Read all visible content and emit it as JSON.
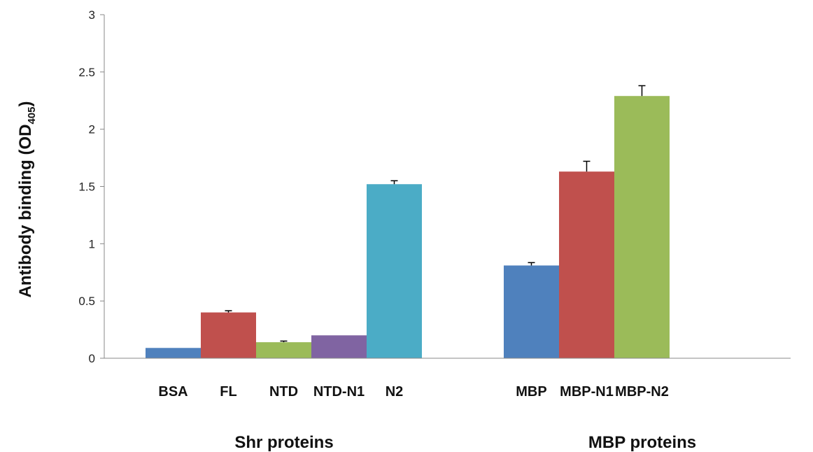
{
  "chart_data": {
    "type": "bar",
    "title": "",
    "ylabel": "Antibody binding (OD",
    "ylabel_subscript": "405",
    "ylabel_suffix": ")",
    "ylim": [
      0,
      3
    ],
    "yticks": [
      {
        "value": 0,
        "label": "0"
      },
      {
        "value": 0.5,
        "label": "0.5"
      },
      {
        "value": 1,
        "label": "1"
      },
      {
        "value": 1.5,
        "label": "1.5"
      },
      {
        "value": 2,
        "label": "2"
      },
      {
        "value": 2.5,
        "label": "2.5"
      },
      {
        "value": 3,
        "label": "3"
      }
    ],
    "grid": false,
    "groups": [
      {
        "label": "Shr proteins",
        "bars": [
          {
            "category": "BSA",
            "value": 0.09,
            "error": 0,
            "color": "#4F81BD"
          },
          {
            "category": "FL",
            "value": 0.4,
            "error": 0.015,
            "color": "#C0504D"
          },
          {
            "category": "NTD",
            "value": 0.14,
            "error": 0.01,
            "color": "#9BBB59"
          },
          {
            "category": "NTD-N1",
            "value": 0.2,
            "error": 0,
            "color": "#8064A2"
          },
          {
            "category": "N2",
            "value": 1.52,
            "error": 0.03,
            "color": "#4BACC6"
          }
        ]
      },
      {
        "label": "MBP proteins",
        "bars": [
          {
            "category": "MBP",
            "value": 0.81,
            "error": 0.025,
            "color": "#4F81BD"
          },
          {
            "category": "MBP-N1",
            "value": 1.63,
            "error": 0.09,
            "color": "#C0504D"
          },
          {
            "category": "MBP-N2",
            "value": 2.29,
            "error": 0.09,
            "color": "#9BBB59"
          }
        ]
      }
    ]
  }
}
